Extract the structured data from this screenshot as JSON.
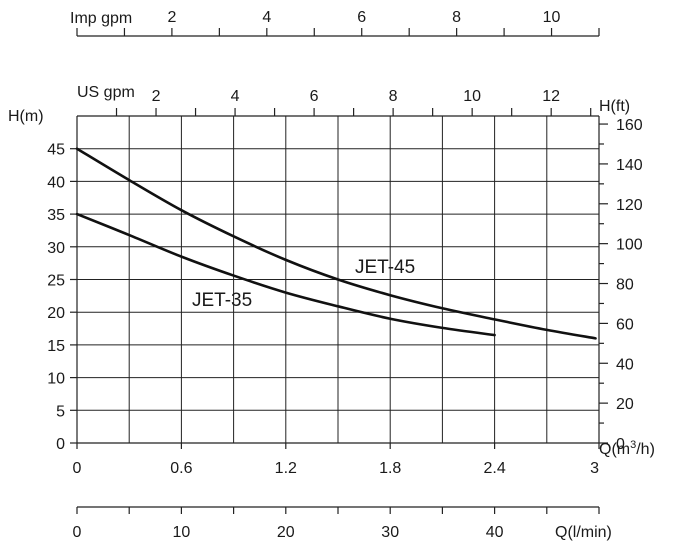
{
  "chart_data": {
    "type": "line",
    "title": "",
    "grid": true,
    "x_axis_bottom": {
      "label_text": "Q(m",
      "label_sup": "3",
      "label_tail": "/h)",
      "range": [
        0,
        3
      ],
      "ticks": [
        "0",
        "0.6",
        "1.2",
        "1.8",
        "2.4",
        "3"
      ]
    },
    "y_axis_left": {
      "label": "H(m)",
      "range": [
        0,
        50
      ],
      "ticks": [
        "0",
        "5",
        "10",
        "15",
        "20",
        "25",
        "30",
        "35",
        "40",
        "45"
      ]
    },
    "y_axis_right": {
      "label": "H(ft)",
      "range": [
        0,
        164.04
      ],
      "ticks": [
        "0",
        "20",
        "40",
        "60",
        "80",
        "100",
        "120",
        "140",
        "160"
      ]
    },
    "top_axis_us": {
      "label": "US gpm",
      "range": [
        0,
        13.21
      ],
      "ticks": [
        "2",
        "4",
        "6",
        "8",
        "10",
        "12"
      ]
    },
    "top_axis_imp": {
      "label": "Imp gpm",
      "range": [
        0,
        11
      ],
      "ticks": [
        "2",
        "4",
        "6",
        "8",
        "10"
      ]
    },
    "bottom_axis_lmin": {
      "label": "Q(l/min)",
      "range": [
        0,
        50
      ],
      "ticks": [
        "0",
        "10",
        "20",
        "30",
        "40"
      ]
    },
    "series": [
      {
        "name": "JET-45",
        "x": [
          0,
          0.3,
          0.6,
          0.9,
          1.2,
          1.5,
          1.8,
          2.1,
          2.4,
          2.7,
          2.98
        ],
        "y": [
          45,
          40.2,
          35.6,
          31.6,
          28.0,
          25.0,
          22.6,
          20.6,
          18.9,
          17.3,
          16.0
        ]
      },
      {
        "name": "JET-35",
        "x": [
          0,
          0.3,
          0.6,
          0.9,
          1.2,
          1.5,
          1.8,
          2.1,
          2.4
        ],
        "y": [
          35,
          31.8,
          28.5,
          25.6,
          23.0,
          20.9,
          19.0,
          17.6,
          16.5
        ]
      }
    ]
  }
}
